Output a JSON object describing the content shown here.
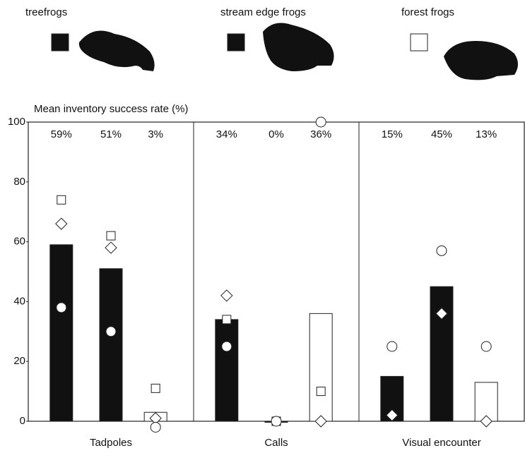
{
  "chart_data": {
    "type": "bar",
    "ylabel": "Mean inventory success rate (%)",
    "categories": [
      "Tadpoles",
      "Calls",
      "Visual encounter"
    ],
    "ylim": [
      0,
      100
    ],
    "yticks": [
      0,
      20,
      40,
      60,
      80,
      100
    ],
    "series": [
      {
        "name": "treefrogs",
        "color": "#111111",
        "values": [
          59,
          34,
          15
        ],
        "value_labels": [
          "59%",
          "34%",
          "15%"
        ],
        "square": [
          74,
          34,
          null
        ],
        "diamond": [
          66,
          42,
          2
        ],
        "circle": [
          38,
          25,
          25
        ]
      },
      {
        "name": "stream edge frogs",
        "color": "#111111",
        "values": [
          51,
          0,
          45
        ],
        "value_labels": [
          "51%",
          "0%",
          "45%"
        ],
        "square": [
          62,
          0,
          null
        ],
        "diamond": [
          58,
          null,
          36
        ],
        "circle": [
          30,
          0,
          57
        ]
      },
      {
        "name": "forest frogs",
        "color": "#ffffff",
        "values": [
          3,
          36,
          13
        ],
        "value_labels": [
          "3%",
          "36%",
          "13%"
        ],
        "square": [
          11,
          10,
          null
        ],
        "diamond": [
          1,
          0,
          0
        ],
        "circle": [
          -2,
          100,
          25
        ]
      }
    ]
  }
}
